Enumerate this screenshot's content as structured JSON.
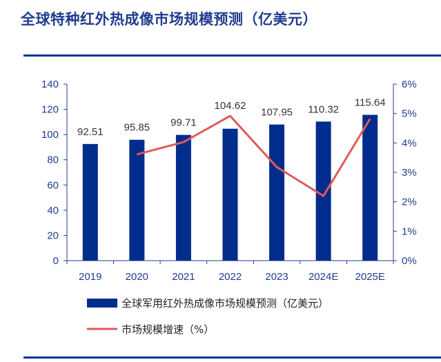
{
  "chart_data": {
    "type": "bar",
    "title": "全球特种红外热成像市场规模预测（亿美元）",
    "categories": [
      "2019",
      "2020",
      "2021",
      "2022",
      "2023",
      "2024E",
      "2025E"
    ],
    "series": [
      {
        "name": "全球军用红外热成像市场规模预测（亿美元）",
        "type": "bar",
        "axis": "left",
        "color": "#002c8c",
        "values": [
          92.51,
          95.85,
          99.71,
          104.62,
          107.95,
          110.32,
          115.64
        ],
        "labels": [
          "92.51",
          "95.85",
          "99.71",
          "104.62",
          "107.95",
          "110.32",
          "115.64"
        ]
      },
      {
        "name": "市场规模增速（%）",
        "type": "line",
        "axis": "right",
        "color": "#e05a5a",
        "values": [
          null,
          3.61,
          4.03,
          4.92,
          3.18,
          2.2,
          4.82
        ]
      }
    ],
    "ylim": [
      0,
      140
    ],
    "yticks": [
      "0",
      "20",
      "40",
      "60",
      "80",
      "100",
      "120",
      "140"
    ],
    "y2lim": [
      0,
      6
    ],
    "y2ticks": [
      "0%",
      "1%",
      "2%",
      "3%",
      "4%",
      "5%",
      "6%"
    ],
    "grid": false,
    "legend": "bottom"
  }
}
